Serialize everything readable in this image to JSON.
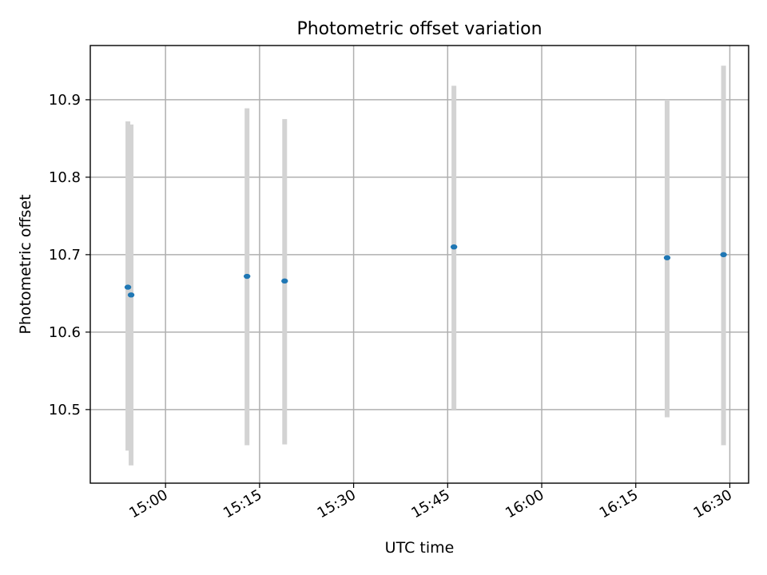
{
  "chart_data": {
    "type": "scatter",
    "title": "Photometric offset variation",
    "xlabel": "UTC time",
    "ylabel": "Photometric offset",
    "x_ticks": [
      "15:00",
      "15:15",
      "15:30",
      "15:45",
      "16:00",
      "16:15",
      "16:30"
    ],
    "y_ticks": [
      "10.5",
      "10.6",
      "10.7",
      "10.8",
      "10.9"
    ],
    "y_tick_values": [
      10.5,
      10.6,
      10.7,
      10.8,
      10.9
    ],
    "xlim": [
      "14:48",
      "16:33"
    ],
    "ylim": [
      10.405,
      10.97
    ],
    "grid": true,
    "point_color": "#1f77b4",
    "errorbar_color": "#d3d3d3",
    "series": [
      {
        "points": [
          {
            "x": "14:54",
            "y": 10.658,
            "y_low": 10.447,
            "y_high": 10.872
          },
          {
            "x": "14:54",
            "y": 10.648,
            "y_low": 10.428,
            "y_high": 10.868
          },
          {
            "x": "15:13",
            "y": 10.672,
            "y_low": 10.454,
            "y_high": 10.889
          },
          {
            "x": "15:19",
            "y": 10.666,
            "y_low": 10.455,
            "y_high": 10.875
          },
          {
            "x": "15:46",
            "y": 10.71,
            "y_low": 10.5,
            "y_high": 10.918
          },
          {
            "x": "16:20",
            "y": 10.696,
            "y_low": 10.49,
            "y_high": 10.9
          },
          {
            "x": "16:29",
            "y": 10.7,
            "y_low": 10.454,
            "y_high": 10.944
          }
        ]
      }
    ]
  }
}
